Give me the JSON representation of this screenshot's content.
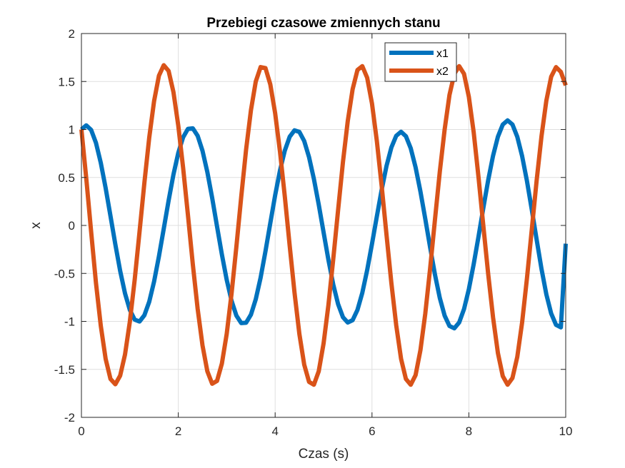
{
  "chart_data": {
    "type": "line",
    "title": "Przebiegi czasowe zmiennych stanu",
    "xlabel": "Czas (s)",
    "ylabel": "x",
    "xlim": [
      0,
      10
    ],
    "ylim": [
      -2,
      2
    ],
    "xticks": [
      0,
      2,
      4,
      6,
      8,
      10
    ],
    "yticks": [
      -2,
      -1.5,
      -1,
      -0.5,
      0,
      0.5,
      1,
      1.5,
      2
    ],
    "grid": true,
    "legend_position": "top-right",
    "series": [
      {
        "name": "x1",
        "color": "#0072BD",
        "x": [
          0,
          0.1,
          0.2,
          0.3,
          0.4,
          0.5,
          0.6,
          0.7,
          0.8,
          0.9,
          1.0,
          1.1,
          1.2,
          1.3,
          1.4,
          1.5,
          1.6,
          1.7,
          1.8,
          1.9,
          2.0,
          2.1,
          2.2,
          2.3,
          2.4,
          2.5,
          2.6,
          2.7,
          2.8,
          2.9,
          3.0,
          3.1,
          3.2,
          3.3,
          3.4,
          3.5,
          3.6,
          3.7,
          3.8,
          3.9,
          4.0,
          4.1,
          4.2,
          4.3,
          4.4,
          4.5,
          4.6,
          4.7,
          4.8,
          4.9,
          5.0,
          5.1,
          5.2,
          5.3,
          5.4,
          5.5,
          5.6,
          5.7,
          5.8,
          5.9,
          6.0,
          6.1,
          6.2,
          6.3,
          6.4,
          6.5,
          6.6,
          6.7,
          6.8,
          6.9,
          7.0,
          7.1,
          7.2,
          7.3,
          7.4,
          7.5,
          7.6,
          7.7,
          7.8,
          7.9,
          8.0,
          8.1,
          8.2,
          8.3,
          8.4,
          8.5,
          8.6,
          8.7,
          8.8,
          8.9,
          9.0,
          9.1,
          9.2,
          9.3,
          9.4,
          9.5,
          9.6,
          9.7,
          9.8,
          9.9,
          10.0
        ],
        "y": [
          1.0,
          1.043,
          0.996,
          0.861,
          0.652,
          0.39,
          0.098,
          -0.197,
          -0.474,
          -0.708,
          -0.881,
          -0.982,
          -1.001,
          -0.936,
          -0.795,
          -0.585,
          -0.323,
          -0.034,
          0.258,
          0.53,
          0.756,
          0.919,
          1.007,
          1.012,
          0.934,
          0.778,
          0.556,
          0.286,
          -0.01,
          -0.302,
          -0.567,
          -0.785,
          -0.94,
          -1.018,
          -1.014,
          -0.93,
          -0.769,
          -0.544,
          -0.27,
          0.024,
          0.314,
          0.573,
          0.781,
          0.924,
          0.991,
          0.975,
          0.88,
          0.712,
          0.485,
          0.218,
          -0.071,
          -0.359,
          -0.616,
          -0.82,
          -0.956,
          -1.012,
          -0.987,
          -0.88,
          -0.702,
          -0.466,
          -0.192,
          0.094,
          0.373,
          0.621,
          0.812,
          0.934,
          0.976,
          0.93,
          0.804,
          0.606,
          0.354,
          0.069,
          -0.228,
          -0.512,
          -0.756,
          -0.94,
          -1.048,
          -1.072,
          -1.011,
          -0.872,
          -0.664,
          -0.403,
          -0.114,
          0.186,
          0.474,
          0.727,
          0.925,
          1.051,
          1.095,
          1.052,
          0.924,
          0.722,
          0.462,
          0.163,
          -0.149,
          -0.453,
          -0.718,
          -0.918,
          -1.036,
          -1.062,
          -0.19
        ]
      },
      {
        "name": "x2",
        "color": "#D95319",
        "x": [
          0,
          0.1,
          0.2,
          0.3,
          0.4,
          0.5,
          0.6,
          0.7,
          0.8,
          0.9,
          1.0,
          1.1,
          1.2,
          1.3,
          1.4,
          1.5,
          1.6,
          1.7,
          1.8,
          1.9,
          2.0,
          2.1,
          2.2,
          2.3,
          2.4,
          2.5,
          2.6,
          2.7,
          2.8,
          2.9,
          3.0,
          3.1,
          3.2,
          3.3,
          3.4,
          3.5,
          3.6,
          3.7,
          3.8,
          3.9,
          4.0,
          4.1,
          4.2,
          4.3,
          4.4,
          4.5,
          4.6,
          4.7,
          4.8,
          4.9,
          5.0,
          5.1,
          5.2,
          5.3,
          5.4,
          5.5,
          5.6,
          5.7,
          5.8,
          5.9,
          6.0,
          6.1,
          6.2,
          6.3,
          6.4,
          6.5,
          6.6,
          6.7,
          6.8,
          6.9,
          7.0,
          7.1,
          7.2,
          7.3,
          7.4,
          7.5,
          7.6,
          7.7,
          7.8,
          7.9,
          8.0,
          8.1,
          8.2,
          8.3,
          8.4,
          8.5,
          8.6,
          8.7,
          8.8,
          8.9,
          9.0,
          9.1,
          9.2,
          9.3,
          9.4,
          9.5,
          9.6,
          9.7,
          9.8,
          9.9,
          10.0
        ],
        "y": [
          1.0,
          0.49,
          -0.063,
          -0.598,
          -1.047,
          -1.391,
          -1.6,
          -1.655,
          -1.565,
          -1.345,
          -1.002,
          -0.565,
          -0.065,
          0.445,
          0.915,
          1.295,
          1.56,
          1.67,
          1.61,
          1.39,
          1.04,
          0.6,
          0.105,
          -0.405,
          -0.87,
          -1.25,
          -1.52,
          -1.65,
          -1.62,
          -1.44,
          -1.13,
          -0.71,
          -0.22,
          0.3,
          0.79,
          1.2,
          1.5,
          1.65,
          1.64,
          1.47,
          1.17,
          0.77,
          0.3,
          -0.21,
          -0.7,
          -1.13,
          -1.45,
          -1.63,
          -1.66,
          -1.52,
          -1.23,
          -0.83,
          -0.35,
          0.16,
          0.66,
          1.09,
          1.42,
          1.62,
          1.66,
          1.54,
          1.27,
          0.88,
          0.41,
          -0.1,
          -0.6,
          -1.04,
          -1.39,
          -1.6,
          -1.66,
          -1.56,
          -1.3,
          -0.92,
          -0.45,
          0.06,
          0.56,
          1.0,
          1.36,
          1.58,
          1.66,
          1.58,
          1.34,
          0.97,
          0.5,
          -0.01,
          -0.51,
          -0.96,
          -1.33,
          -1.57,
          -1.66,
          -1.59,
          -1.37,
          -1.01,
          -0.55,
          -0.04,
          0.47,
          0.93,
          1.3,
          1.55,
          1.65,
          1.6,
          1.46
        ]
      }
    ]
  }
}
